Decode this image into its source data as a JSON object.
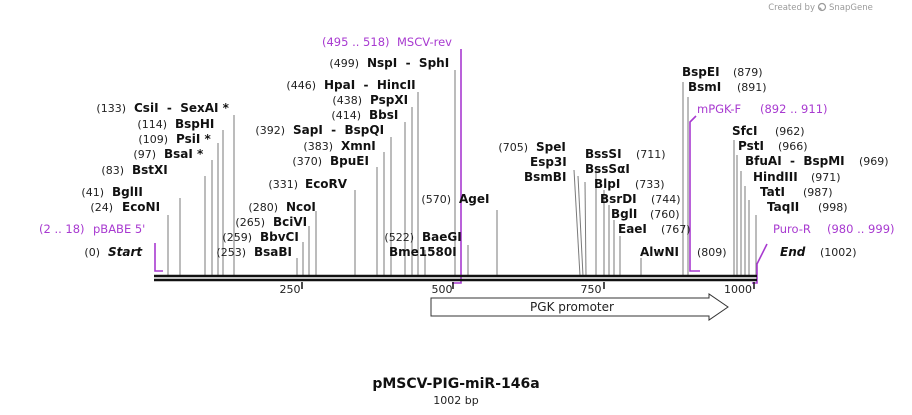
{
  "map": {
    "name": "pMSCV-PIG-miR-146a",
    "length_label": "1002 bp",
    "credit_prefix": "Created by",
    "credit_brand": "SnapGene"
  },
  "axis": {
    "ticks": [
      "250",
      "500",
      "750",
      "1000"
    ]
  },
  "endpoints": {
    "start": {
      "pos": "(0)",
      "name": "Start"
    },
    "end": {
      "pos": "(1002)",
      "name": "End"
    }
  },
  "features": [
    {
      "name": "PGK promoter"
    }
  ],
  "primers": [
    {
      "name": "pBABE 5'",
      "range": "(2 .. 18)"
    },
    {
      "name": "MSCV-rev",
      "range": "(495 .. 518)"
    },
    {
      "name": "mPGK-F",
      "range": "(892 .. 911)"
    },
    {
      "name": "Puro-R",
      "range": "(980 .. 999)"
    }
  ],
  "sites": [
    {
      "name": "EcoNI",
      "pos": "(24)"
    },
    {
      "name": "BglII",
      "pos": "(41)"
    },
    {
      "name": "BstXI",
      "pos": "(83)"
    },
    {
      "name": "BsaI *",
      "pos": "(97)"
    },
    {
      "name": "PsiI *",
      "pos": "(109)"
    },
    {
      "name": "BspHI",
      "pos": "(114)"
    },
    {
      "name": "CsiI  -  SexAI *",
      "pos": "(133)"
    },
    {
      "name": "BsaBI",
      "pos": "(253)"
    },
    {
      "name": "BbvCI",
      "pos": "(259)"
    },
    {
      "name": "BciVI",
      "pos": "(265)"
    },
    {
      "name": "NcoI",
      "pos": "(280)"
    },
    {
      "name": "EcoRV",
      "pos": "(331)"
    },
    {
      "name": "BpuEI",
      "pos": "(370)"
    },
    {
      "name": "XmnI",
      "pos": "(383)"
    },
    {
      "name": "SapI  -  BspQI",
      "pos": "(392)"
    },
    {
      "name": "BbsI",
      "pos": "(414)"
    },
    {
      "name": "PspXI",
      "pos": "(438)"
    },
    {
      "name": "HpaI  -  HincII",
      "pos": "(446)"
    },
    {
      "name": "NspI  -  SphI",
      "pos": "(499)"
    },
    {
      "name": "BaeGI",
      "pos": "(522)"
    },
    {
      "name": "Bme1580I",
      "pos": ""
    },
    {
      "name": "AgeI",
      "pos": "(570)"
    },
    {
      "name": "SpeI",
      "pos": "(705)"
    },
    {
      "name": "Esp3I",
      "pos": ""
    },
    {
      "name": "BsmBI",
      "pos": ""
    },
    {
      "name": "BssSI",
      "pos": "(711)"
    },
    {
      "name": "BssSαI",
      "pos": ""
    },
    {
      "name": "BlpI",
      "pos": "(733)"
    },
    {
      "name": "BsrDI",
      "pos": "(744)"
    },
    {
      "name": "BglI",
      "pos": "(760)"
    },
    {
      "name": "EaeI",
      "pos": "(767)"
    },
    {
      "name": "AlwNI",
      "pos": "(809)"
    },
    {
      "name": "BspEI",
      "pos": "(879)"
    },
    {
      "name": "BsmI",
      "pos": "(891)"
    },
    {
      "name": "SfcI",
      "pos": "(962)"
    },
    {
      "name": "PstI",
      "pos": "(966)"
    },
    {
      "name": "BfuAI  -  BspMI",
      "pos": "(969)"
    },
    {
      "name": "HindIII",
      "pos": "(971)"
    },
    {
      "name": "TatI",
      "pos": "(987)"
    },
    {
      "name": "TaqII",
      "pos": "(998)"
    }
  ]
}
